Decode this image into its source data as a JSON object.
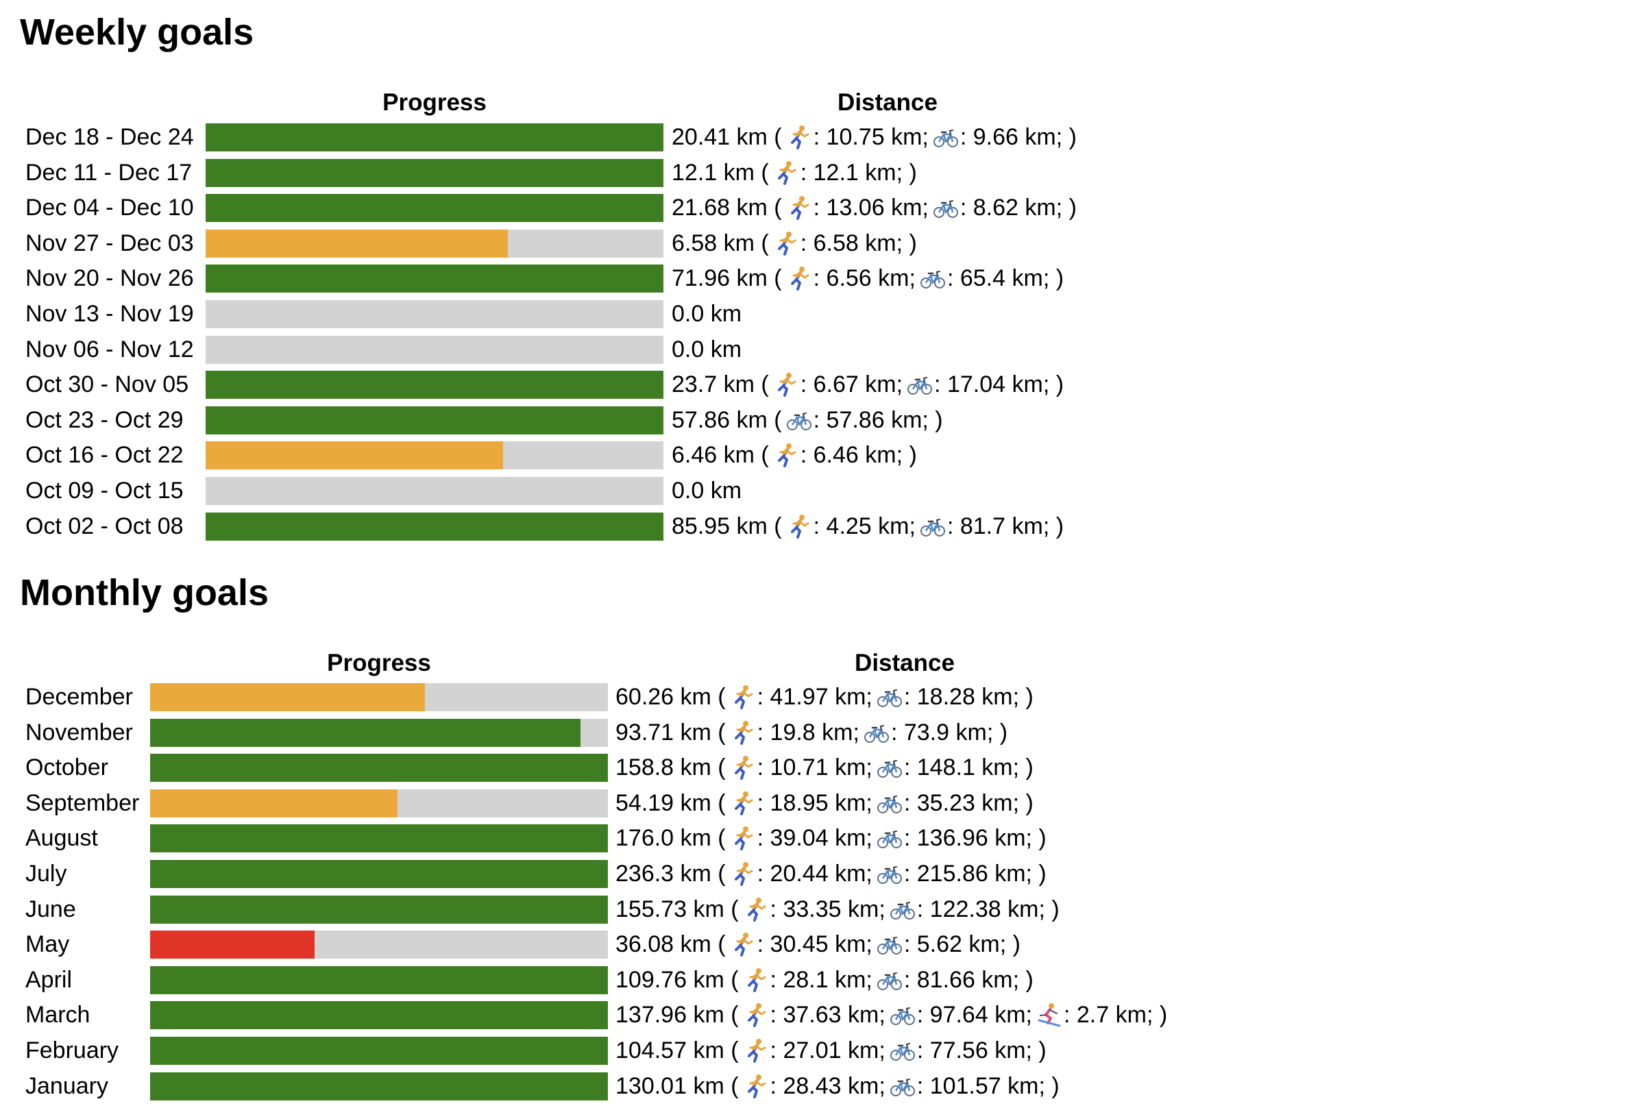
{
  "weekly": {
    "title": "Weekly goals",
    "progress_header": "Progress",
    "distance_header": "Distance",
    "rows": [
      {
        "label": "Dec 18 - Dec 24",
        "progress": 1.0,
        "status": "complete",
        "total": "20.41 km",
        "parts": [
          {
            "icon": "running-icon",
            "value": "10.75 km"
          },
          {
            "icon": "bicycle-icon",
            "value": "9.66 km"
          }
        ]
      },
      {
        "label": "Dec 11 - Dec 17",
        "progress": 1.0,
        "status": "complete",
        "total": "12.1 km",
        "parts": [
          {
            "icon": "running-icon",
            "value": "12.1 km"
          }
        ]
      },
      {
        "label": "Dec 04 - Dec 10",
        "progress": 1.0,
        "status": "complete",
        "total": "21.68 km",
        "parts": [
          {
            "icon": "running-icon",
            "value": "13.06 km"
          },
          {
            "icon": "bicycle-icon",
            "value": "8.62 km"
          }
        ]
      },
      {
        "label": "Nov 27 - Dec 03",
        "progress": 0.66,
        "status": "partial",
        "total": "6.58 km",
        "parts": [
          {
            "icon": "running-icon",
            "value": "6.58 km"
          }
        ]
      },
      {
        "label": "Nov 20 - Nov 26",
        "progress": 1.0,
        "status": "complete",
        "total": "71.96 km",
        "parts": [
          {
            "icon": "running-icon",
            "value": "6.56 km"
          },
          {
            "icon": "bicycle-icon",
            "value": "65.4 km"
          }
        ]
      },
      {
        "label": "Nov 13 - Nov 19",
        "progress": 0.0,
        "status": "none",
        "total": "0.0 km",
        "parts": []
      },
      {
        "label": "Nov 06 - Nov 12",
        "progress": 0.0,
        "status": "none",
        "total": "0.0 km",
        "parts": []
      },
      {
        "label": "Oct 30 - Nov 05",
        "progress": 1.0,
        "status": "complete",
        "total": "23.7 km",
        "parts": [
          {
            "icon": "running-icon",
            "value": "6.67 km"
          },
          {
            "icon": "bicycle-icon",
            "value": "17.04 km"
          }
        ]
      },
      {
        "label": "Oct 23 - Oct 29",
        "progress": 1.0,
        "status": "complete",
        "total": "57.86 km",
        "parts": [
          {
            "icon": "bicycle-icon",
            "value": "57.86 km"
          }
        ]
      },
      {
        "label": "Oct 16 - Oct 22",
        "progress": 0.65,
        "status": "partial",
        "total": "6.46 km",
        "parts": [
          {
            "icon": "running-icon",
            "value": "6.46 km"
          }
        ]
      },
      {
        "label": "Oct 09 - Oct 15",
        "progress": 0.0,
        "status": "none",
        "total": "0.0 km",
        "parts": []
      },
      {
        "label": "Oct 02 - Oct 08",
        "progress": 1.0,
        "status": "complete",
        "total": "85.95 km",
        "parts": [
          {
            "icon": "running-icon",
            "value": "4.25 km"
          },
          {
            "icon": "bicycle-icon",
            "value": "81.7 km"
          }
        ]
      }
    ]
  },
  "monthly": {
    "title": "Monthly goals",
    "progress_header": "Progress",
    "distance_header": "Distance",
    "rows": [
      {
        "label": "December",
        "progress": 0.6,
        "status": "partial",
        "total": "60.26 km",
        "parts": [
          {
            "icon": "running-icon",
            "value": "41.97 km"
          },
          {
            "icon": "bicycle-icon",
            "value": "18.28 km"
          }
        ]
      },
      {
        "label": "November",
        "progress": 0.94,
        "status": "complete",
        "total": "93.71 km",
        "parts": [
          {
            "icon": "running-icon",
            "value": "19.8 km"
          },
          {
            "icon": "bicycle-icon",
            "value": "73.9 km"
          }
        ]
      },
      {
        "label": "October",
        "progress": 1.0,
        "status": "complete",
        "total": "158.8 km",
        "parts": [
          {
            "icon": "running-icon",
            "value": "10.71 km"
          },
          {
            "icon": "bicycle-icon",
            "value": "148.1 km"
          }
        ]
      },
      {
        "label": "September",
        "progress": 0.54,
        "status": "partial",
        "total": "54.19 km",
        "parts": [
          {
            "icon": "running-icon",
            "value": "18.95 km"
          },
          {
            "icon": "bicycle-icon",
            "value": "35.23 km"
          }
        ]
      },
      {
        "label": "August",
        "progress": 1.0,
        "status": "complete",
        "total": "176.0 km",
        "parts": [
          {
            "icon": "running-icon",
            "value": "39.04 km"
          },
          {
            "icon": "bicycle-icon",
            "value": "136.96 km"
          }
        ]
      },
      {
        "label": "July",
        "progress": 1.0,
        "status": "complete",
        "total": "236.3 km",
        "parts": [
          {
            "icon": "running-icon",
            "value": "20.44 km"
          },
          {
            "icon": "bicycle-icon",
            "value": "215.86 km"
          }
        ]
      },
      {
        "label": "June",
        "progress": 1.0,
        "status": "complete",
        "total": "155.73 km",
        "parts": [
          {
            "icon": "running-icon",
            "value": "33.35 km"
          },
          {
            "icon": "bicycle-icon",
            "value": "122.38 km"
          }
        ]
      },
      {
        "label": "May",
        "progress": 0.36,
        "status": "low",
        "total": "36.08 km",
        "parts": [
          {
            "icon": "running-icon",
            "value": "30.45 km"
          },
          {
            "icon": "bicycle-icon",
            "value": "5.62 km"
          }
        ]
      },
      {
        "label": "April",
        "progress": 1.0,
        "status": "complete",
        "total": "109.76 km",
        "parts": [
          {
            "icon": "running-icon",
            "value": "28.1 km"
          },
          {
            "icon": "bicycle-icon",
            "value": "81.66 km"
          }
        ]
      },
      {
        "label": "March",
        "progress": 1.0,
        "status": "complete",
        "total": "137.96 km",
        "parts": [
          {
            "icon": "running-icon",
            "value": "37.63 km"
          },
          {
            "icon": "bicycle-icon",
            "value": "97.64 km"
          },
          {
            "icon": "skier-icon",
            "value": "2.7 km"
          }
        ]
      },
      {
        "label": "February",
        "progress": 1.0,
        "status": "complete",
        "total": "104.57 km",
        "parts": [
          {
            "icon": "running-icon",
            "value": "27.01 km"
          },
          {
            "icon": "bicycle-icon",
            "value": "77.56 km"
          }
        ]
      },
      {
        "label": "January",
        "progress": 1.0,
        "status": "complete",
        "total": "130.01 km",
        "parts": [
          {
            "icon": "running-icon",
            "value": "28.43 km"
          },
          {
            "icon": "bicycle-icon",
            "value": "101.57 km"
          }
        ]
      }
    ]
  },
  "colors": {
    "complete": "#3f7d23",
    "partial": "#eba93c",
    "low": "#e03526",
    "none": "#d3d3d3",
    "track": "#d3d3d3"
  }
}
